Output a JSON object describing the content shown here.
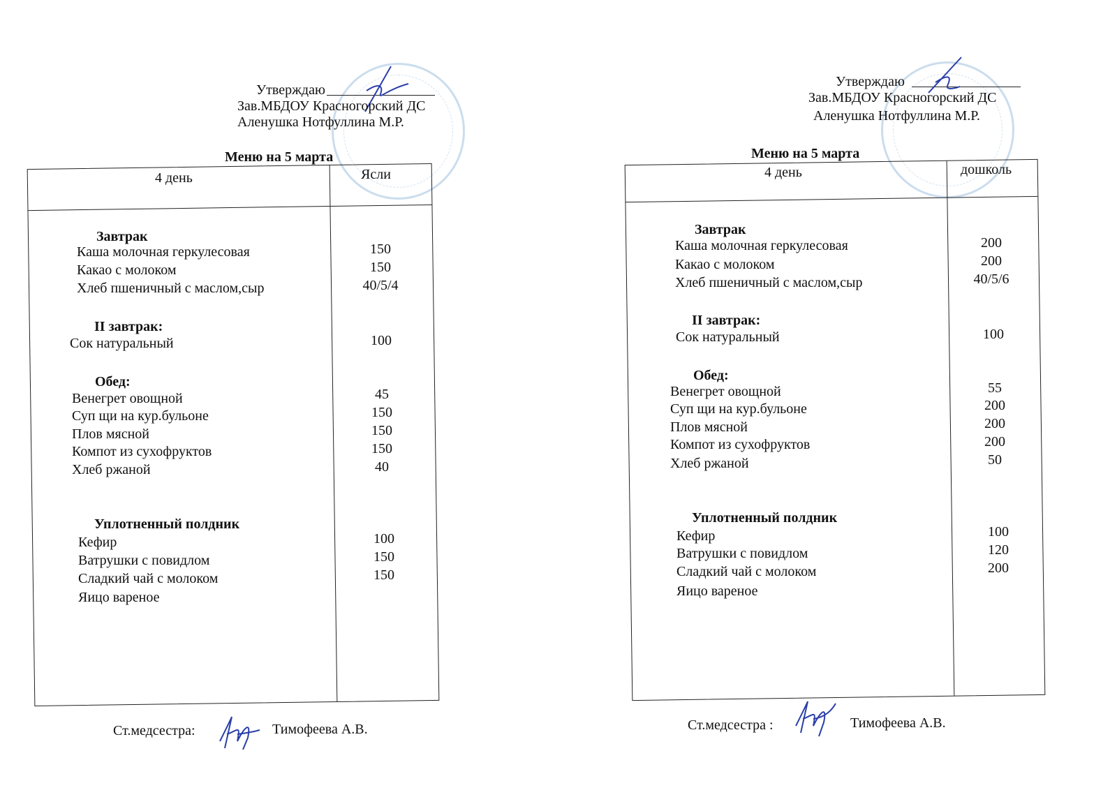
{
  "documents": [
    {
      "approval": {
        "label": "Утверждаю",
        "position": "Зав.МБДОУ Красногорский ДС",
        "name": "Аленушка Нотфуллина М.Р."
      },
      "title": "Меню на 5 марта",
      "header": {
        "day": "4 день",
        "group": "Ясли"
      },
      "sections": [
        {
          "title": "Завтрак",
          "items": [
            {
              "name": "Каша молочная геркулесовая",
              "value": "150"
            },
            {
              "name": "Какао  с молоком",
              "value": "150"
            },
            {
              "name": "Хлеб пшеничный с маслом,сыр",
              "value": "40/5/4"
            }
          ]
        },
        {
          "title": "II завтрак:",
          "items": [
            {
              "name": "Сок натуральный",
              "value": "100"
            }
          ]
        },
        {
          "title": "Обед:",
          "items": [
            {
              "name": "Венегрет овощной",
              "value": "45"
            },
            {
              "name": "Суп щи на кур.бульоне",
              "value": "150"
            },
            {
              "name": "Плов мясной",
              "value": "150"
            },
            {
              "name": "Компот из сухофруктов",
              "value": "150"
            },
            {
              "name": "Хлеб ржаной",
              "value": "40"
            }
          ]
        },
        {
          "title": "Уплотненный полдник",
          "items": [
            {
              "name": "Кефир",
              "value": "100"
            },
            {
              "name": "Ватрушки с повидлом",
              "value": "150"
            },
            {
              "name": "Сладкий чай с молоком",
              "value": "150"
            },
            {
              "name": "Яицо вареное",
              "value": ""
            }
          ]
        }
      ],
      "footer": {
        "role": "Ст.медсестра:",
        "name": "Тимофеева А.В."
      }
    },
    {
      "approval": {
        "label": "Утверждаю",
        "position": "Зав.МБДОУ Красногорский ДС",
        "name": "Аленушка Нотфуллина М.Р."
      },
      "title": "Меню на 5 марта",
      "header": {
        "day": "4 день",
        "group": "дошколь"
      },
      "sections": [
        {
          "title": "Завтрак",
          "items": [
            {
              "name": "Каша молочная   геркулесовая",
              "value": "200"
            },
            {
              "name": "Какао    с молоком",
              "value": "200"
            },
            {
              "name": "Хлеб пшеничный с маслом,сыр",
              "value": "40/5/6"
            }
          ]
        },
        {
          "title": "II завтрак:",
          "items": [
            {
              "name": "Сок натуральный",
              "value": "100"
            }
          ]
        },
        {
          "title": "Обед:",
          "items": [
            {
              "name": "Венегрет овощной",
              "value": "55"
            },
            {
              "name": "Суп щи на кур.бульоне",
              "value": "200"
            },
            {
              "name": "Плов мясной",
              "value": "200"
            },
            {
              "name": "Компот из сухофруктов",
              "value": "200"
            },
            {
              "name": "Хлеб ржаной",
              "value": "50"
            }
          ]
        },
        {
          "title": "Уплотненный полдник",
          "items": [
            {
              "name": "Кефир",
              "value": "100"
            },
            {
              "name": "Ватрушки с повидлом",
              "value": "120"
            },
            {
              "name": "Сладкий чай с молоком",
              "value": "200"
            },
            {
              "name": "Яицо вареное",
              "value": ""
            }
          ]
        }
      ],
      "footer": {
        "role": "Ст.медсестра :",
        "name": "Тимофеева А.В."
      }
    }
  ],
  "colors": {
    "ink": "#111111",
    "signature": "#2a3fa8",
    "stamp": "#8cb4d7"
  }
}
